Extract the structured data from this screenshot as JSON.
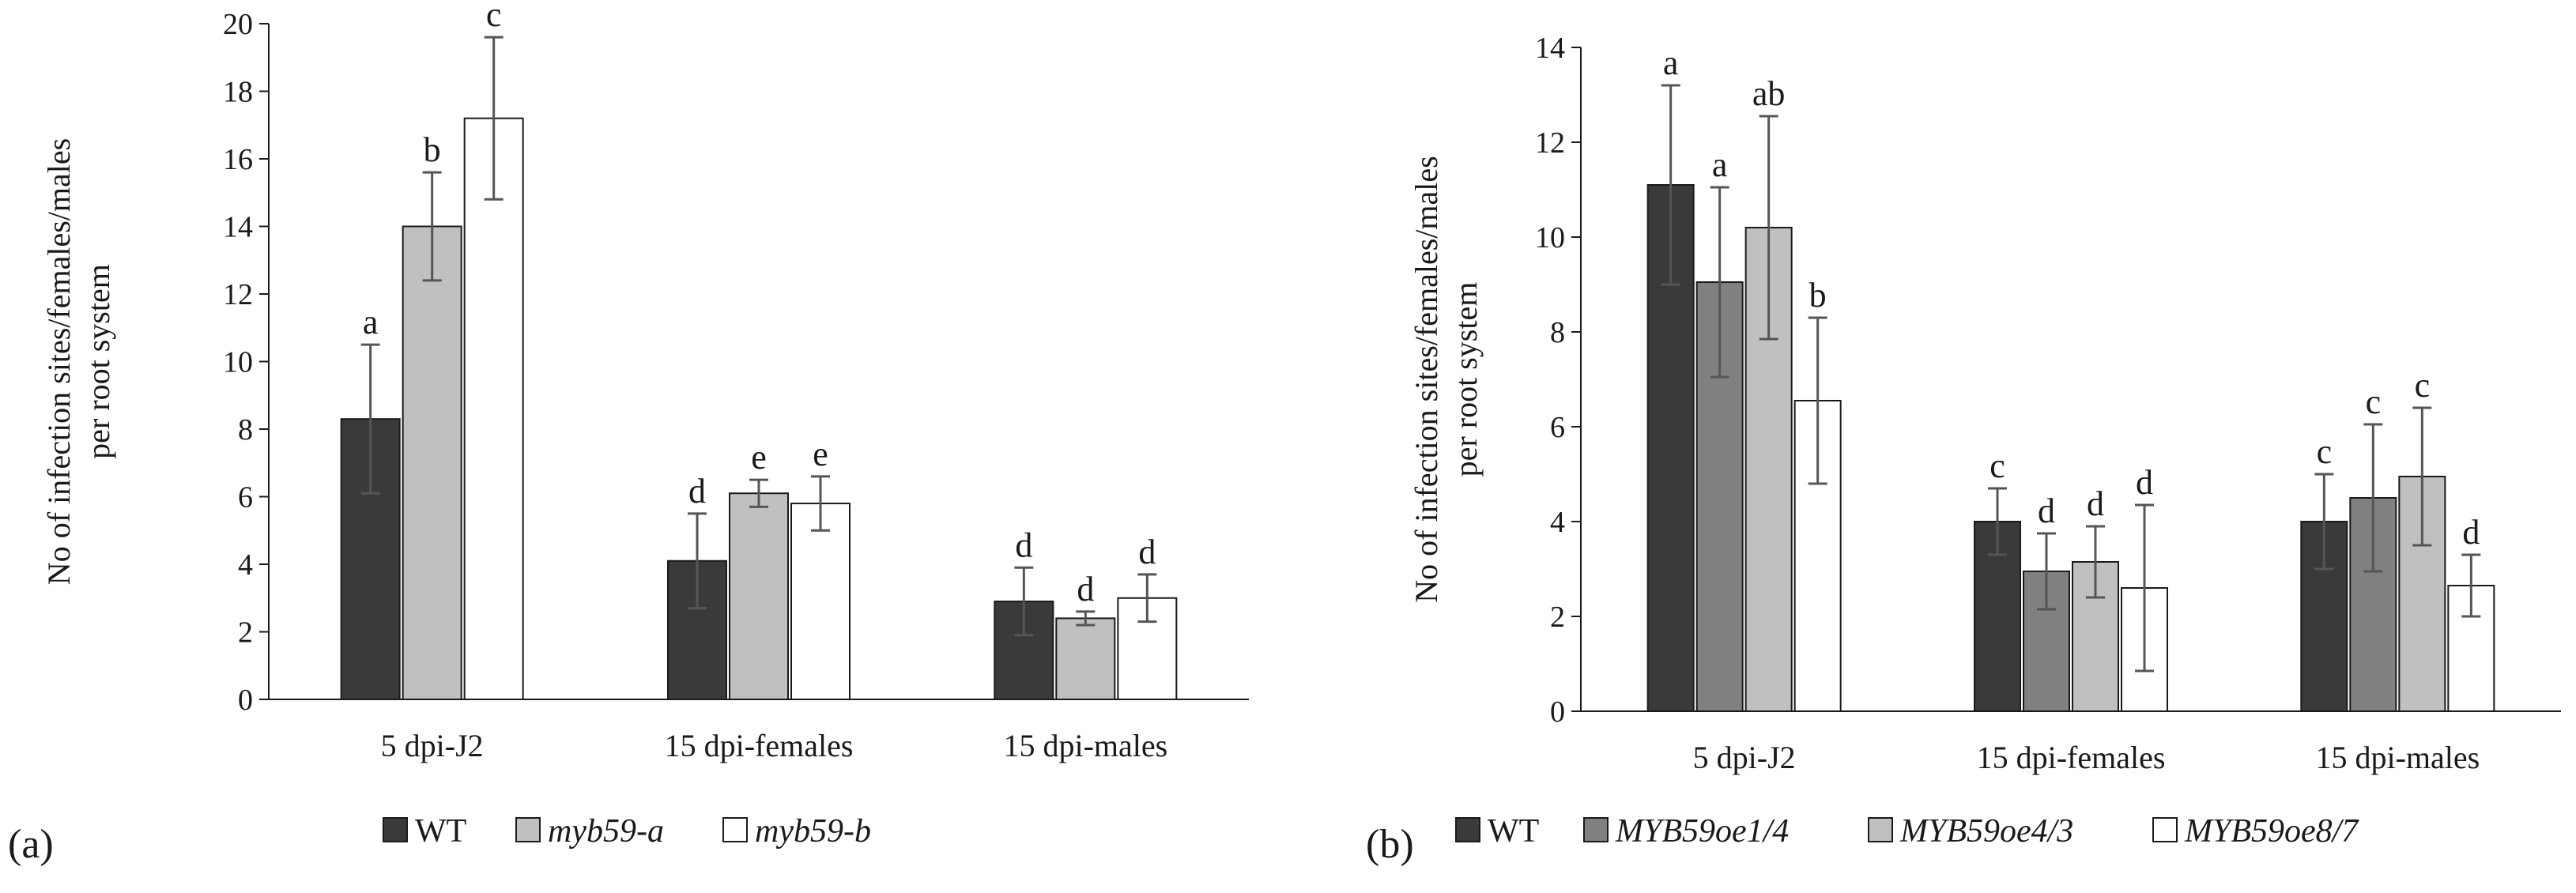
{
  "chart_data": [
    {
      "panel_label": "(a)",
      "type": "bar",
      "ylabel_line1": "No of infection sites/females/males",
      "ylabel_line2": "per root system",
      "ylim": [
        0,
        20
      ],
      "yticks": [
        "0",
        "2",
        "4",
        "6",
        "8",
        "10",
        "12",
        "14",
        "16",
        "18",
        "20"
      ],
      "categories": [
        "5 dpi-J2",
        "15 dpi-females",
        "15 dpi-males"
      ],
      "series": [
        {
          "name": "WT",
          "italic": false,
          "color": "#3a3a3a",
          "values": [
            8.3,
            4.1,
            2.9
          ],
          "errors": [
            2.2,
            1.4,
            1.0
          ],
          "letters": [
            "a",
            "d",
            "d"
          ]
        },
        {
          "name": "myb59-a",
          "italic": true,
          "color": "#c0c0c0",
          "values": [
            14.0,
            6.1,
            2.4
          ],
          "errors": [
            1.6,
            0.4,
            0.2
          ],
          "letters": [
            "b",
            "e",
            "d"
          ]
        },
        {
          "name": "myb59-b",
          "italic": true,
          "color": "#ffffff",
          "values": [
            17.2,
            5.8,
            3.0
          ],
          "errors": [
            2.4,
            0.8,
            0.7
          ],
          "letters": [
            "c",
            "e",
            "d"
          ]
        }
      ]
    },
    {
      "panel_label": "(b)",
      "type": "bar",
      "ylabel_line1": "No of infection sites/females/males",
      "ylabel_line2": "per root system",
      "ylim": [
        0,
        14
      ],
      "yticks": [
        "0",
        "2",
        "4",
        "6",
        "8",
        "10",
        "12",
        "14"
      ],
      "categories": [
        "5 dpi-J2",
        "15 dpi-females",
        "15 dpi-males"
      ],
      "series": [
        {
          "name": "WT",
          "italic": false,
          "color": "#3a3a3a",
          "values": [
            11.1,
            4.0,
            4.0
          ],
          "errors": [
            2.1,
            0.7,
            1.0
          ],
          "letters": [
            "a",
            "c",
            "c"
          ]
        },
        {
          "name": "MYB59oe1/4",
          "italic": true,
          "color": "#808080",
          "values": [
            9.05,
            2.95,
            4.5
          ],
          "errors": [
            2.0,
            0.8,
            1.55
          ],
          "letters": [
            "a",
            "d",
            "c"
          ]
        },
        {
          "name": "MYB59oe4/3",
          "italic": true,
          "color": "#c0c0c0",
          "values": [
            10.2,
            3.15,
            4.95
          ],
          "errors": [
            2.35,
            0.75,
            1.45
          ],
          "letters": [
            "ab",
            "d",
            "c"
          ]
        },
        {
          "name": "MYB59oe8/7",
          "italic": true,
          "color": "#ffffff",
          "values": [
            6.55,
            2.6,
            2.65
          ],
          "errors": [
            1.75,
            1.75,
            0.65
          ],
          "letters": [
            "b",
            "d",
            "d"
          ]
        }
      ]
    }
  ]
}
